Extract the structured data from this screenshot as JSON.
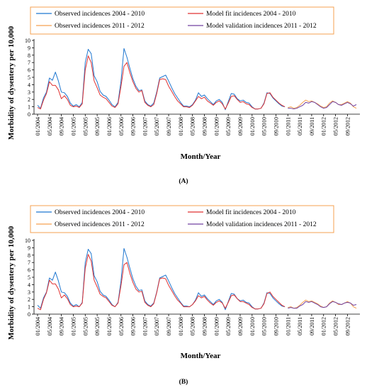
{
  "chart_data": [
    {
      "type": "line",
      "panel_label": "(A)",
      "xlabel": "Month/Year",
      "ylabel": "Morbidity of dysentery per 10,000",
      "ylim": [
        0,
        10
      ],
      "yticks": [
        "0",
        "1",
        "2",
        "3",
        "4",
        "5",
        "6",
        "7",
        "8",
        "9",
        "10"
      ],
      "xticks": [
        "01/2004",
        "05/2004",
        "09/2004",
        "01/2005",
        "05/2005",
        "09/2005",
        "01/2006",
        "05/2006",
        "09/2006",
        "01/2007",
        "05/2007",
        "09/2007",
        "01/2008",
        "05/2008",
        "09/2008",
        "01/2009",
        "05/2009",
        "09/2009",
        "01/2010",
        "05/2010",
        "09/2010",
        "01/2011",
        "05/2011",
        "09/2011",
        "01/2012",
        "05/2012",
        "09/2012"
      ],
      "legend_position": "top",
      "legend": [
        "Observed incidences 2004 - 2010",
        "Model fit incidences 2004 - 2010",
        "Observed incidences 2011 - 2012",
        "Model validation incidences 2011 - 2012"
      ],
      "series": [
        {
          "name": "Observed incidences 2004 - 2010",
          "color": "#1f77d0",
          "x_start": 0,
          "values": [
            1.2,
            0.8,
            2.2,
            3.0,
            4.9,
            4.6,
            5.7,
            4.5,
            3.0,
            2.9,
            2.4,
            1.5,
            1.1,
            1.3,
            1.0,
            1.6,
            7.0,
            8.8,
            8.2,
            5.2,
            4.4,
            3.1,
            2.6,
            2.4,
            1.9,
            1.3,
            1.0,
            1.6,
            4.5,
            8.9,
            7.7,
            6.2,
            4.8,
            3.8,
            3.2,
            3.3,
            1.8,
            1.3,
            1.1,
            1.5,
            3.0,
            4.9,
            5.1,
            5.3,
            4.5,
            3.6,
            2.8,
            2.2,
            1.6,
            1.1,
            1.1,
            1.0,
            1.3,
            1.9,
            2.9,
            2.4,
            2.6,
            2.1,
            1.7,
            1.3,
            1.8,
            2.0,
            1.6,
            0.6,
            1.7,
            2.8,
            2.7,
            2.1,
            1.8,
            1.9,
            1.6,
            1.5,
            1.0,
            0.7,
            0.7,
            0.8,
            1.5,
            2.9,
            2.8,
            2.2,
            1.8,
            1.4,
            1.1,
            1.0
          ]
        },
        {
          "name": "Model fit incidences 2004 - 2010",
          "color": "#e03030",
          "x_start": 0,
          "values": [
            0.9,
            0.7,
            1.9,
            2.8,
            4.4,
            3.9,
            3.9,
            3.3,
            2.1,
            2.5,
            2.0,
            1.2,
            1.0,
            1.1,
            0.9,
            1.4,
            6.0,
            7.9,
            7.0,
            4.5,
            3.6,
            2.6,
            2.3,
            2.1,
            1.6,
            1.1,
            0.9,
            1.4,
            3.8,
            6.5,
            7.0,
            5.6,
            4.4,
            3.5,
            3.0,
            3.2,
            1.6,
            1.2,
            1.0,
            1.3,
            2.8,
            4.7,
            4.8,
            4.7,
            3.8,
            3.1,
            2.4,
            1.8,
            1.4,
            1.0,
            1.0,
            0.9,
            1.2,
            1.8,
            2.4,
            2.1,
            2.3,
            1.8,
            1.5,
            1.2,
            1.6,
            1.8,
            1.4,
            0.7,
            1.5,
            2.4,
            2.5,
            2.0,
            1.6,
            1.7,
            1.4,
            1.3,
            0.9,
            0.7,
            0.7,
            0.8,
            1.4,
            2.8,
            2.9,
            2.3,
            1.9,
            1.5,
            1.2,
            1.0
          ]
        },
        {
          "name": "Observed incidences 2011 - 2012",
          "color": "#f5a050",
          "x_start": 84,
          "values": [
            0.9,
            1.0,
            0.8,
            0.9,
            1.2,
            1.6,
            1.9,
            1.7,
            1.8,
            1.6,
            1.4,
            1.1,
            0.9,
            1.0,
            1.5,
            1.8,
            1.6,
            1.3,
            1.3,
            1.5,
            1.7,
            1.5,
            1.0,
            0.8
          ]
        },
        {
          "name": "Model validation incidences 2011 - 2012",
          "color": "#7040a0",
          "x_start": 84,
          "values": [
            0.8,
            0.8,
            0.7,
            0.8,
            1.0,
            1.2,
            1.6,
            1.5,
            1.7,
            1.6,
            1.3,
            1.0,
            0.8,
            0.9,
            1.3,
            1.7,
            1.6,
            1.3,
            1.2,
            1.4,
            1.6,
            1.4,
            1.1,
            1.3
          ]
        }
      ]
    },
    {
      "type": "line",
      "panel_label": "(B)",
      "xlabel": "Month/Year",
      "ylabel": "Morbidity of dysentery per 10,000",
      "ylim": [
        0,
        10
      ],
      "yticks": [
        "0",
        "1",
        "2",
        "3",
        "4",
        "5",
        "6",
        "7",
        "8",
        "9",
        "10"
      ],
      "xticks": [
        "01/2004",
        "05/2004",
        "09/2004",
        "01/2005",
        "05/2005",
        "09/2005",
        "01/2006",
        "05/2006",
        "09/2006",
        "01/2007",
        "05/2007",
        "09/2007",
        "01/2008",
        "05/2008",
        "09/2008",
        "01/2009",
        "05/2009",
        "09/2009",
        "01/2010",
        "05/2010",
        "09/2010",
        "01/2011",
        "05/2011",
        "09/2011",
        "01/2012",
        "05/2012",
        "09/2012"
      ],
      "legend_position": "top",
      "legend": [
        "Observed incidences 2004 - 2010",
        "Model fit incidences 2004 - 2010",
        "Observed incidences 2011 - 2012",
        "Model validation incidences 2011 - 2012"
      ],
      "series": [
        {
          "name": "Observed incidences 2004 - 2010",
          "color": "#1f77d0",
          "x_start": 0,
          "values": [
            1.2,
            0.8,
            2.2,
            3.0,
            4.9,
            4.6,
            5.7,
            4.5,
            3.0,
            2.9,
            2.4,
            1.5,
            1.1,
            1.3,
            1.0,
            1.6,
            7.0,
            8.8,
            8.2,
            5.2,
            4.4,
            3.1,
            2.6,
            2.4,
            1.9,
            1.3,
            1.0,
            1.6,
            4.5,
            8.9,
            7.7,
            6.2,
            4.8,
            3.8,
            3.2,
            3.3,
            1.8,
            1.3,
            1.1,
            1.5,
            3.0,
            4.9,
            5.1,
            5.3,
            4.5,
            3.6,
            2.8,
            2.2,
            1.6,
            1.1,
            1.1,
            1.0,
            1.3,
            1.9,
            2.9,
            2.4,
            2.6,
            2.1,
            1.7,
            1.3,
            1.8,
            2.0,
            1.6,
            0.6,
            1.7,
            2.8,
            2.7,
            2.1,
            1.8,
            1.9,
            1.6,
            1.5,
            1.0,
            0.7,
            0.7,
            0.8,
            1.5,
            2.9,
            2.8,
            2.2,
            1.8,
            1.4,
            1.1,
            1.0
          ]
        },
        {
          "name": "Model fit incidences 2004 - 2010",
          "color": "#e03030",
          "x_start": 0,
          "values": [
            0.8,
            0.6,
            2.0,
            2.9,
            4.6,
            4.1,
            4.1,
            3.4,
            2.2,
            2.6,
            2.1,
            1.3,
            1.0,
            1.1,
            1.0,
            1.5,
            6.2,
            8.1,
            7.2,
            4.6,
            3.7,
            2.7,
            2.4,
            2.2,
            1.7,
            1.2,
            1.0,
            1.5,
            3.9,
            6.7,
            7.0,
            5.5,
            4.3,
            3.4,
            3.0,
            3.1,
            1.6,
            1.2,
            1.0,
            1.4,
            2.9,
            4.8,
            4.9,
            4.8,
            3.9,
            3.2,
            2.5,
            1.9,
            1.5,
            1.0,
            1.0,
            1.0,
            1.3,
            1.8,
            2.5,
            2.2,
            2.4,
            1.9,
            1.5,
            1.2,
            1.6,
            1.8,
            1.5,
            0.8,
            1.6,
            2.5,
            2.6,
            2.1,
            1.7,
            1.7,
            1.5,
            1.3,
            0.9,
            0.7,
            0.7,
            0.8,
            1.4,
            2.8,
            3.0,
            2.4,
            2.0,
            1.6,
            1.2,
            1.0
          ]
        },
        {
          "name": "Observed incidences 2011 - 2012",
          "color": "#f5a050",
          "x_start": 84,
          "values": [
            0.9,
            1.0,
            0.8,
            0.9,
            1.2,
            1.6,
            1.9,
            1.7,
            1.8,
            1.6,
            1.4,
            1.1,
            0.9,
            1.0,
            1.5,
            1.8,
            1.6,
            1.3,
            1.3,
            1.5,
            1.7,
            1.5,
            1.0,
            0.8
          ]
        },
        {
          "name": "Model validation incidences 2011 - 2012",
          "color": "#7040a0",
          "x_start": 84,
          "values": [
            0.8,
            0.9,
            0.8,
            0.8,
            1.1,
            1.3,
            1.7,
            1.6,
            1.7,
            1.5,
            1.3,
            1.0,
            0.9,
            1.0,
            1.4,
            1.7,
            1.6,
            1.4,
            1.3,
            1.5,
            1.6,
            1.5,
            1.2,
            1.3
          ]
        }
      ]
    }
  ]
}
